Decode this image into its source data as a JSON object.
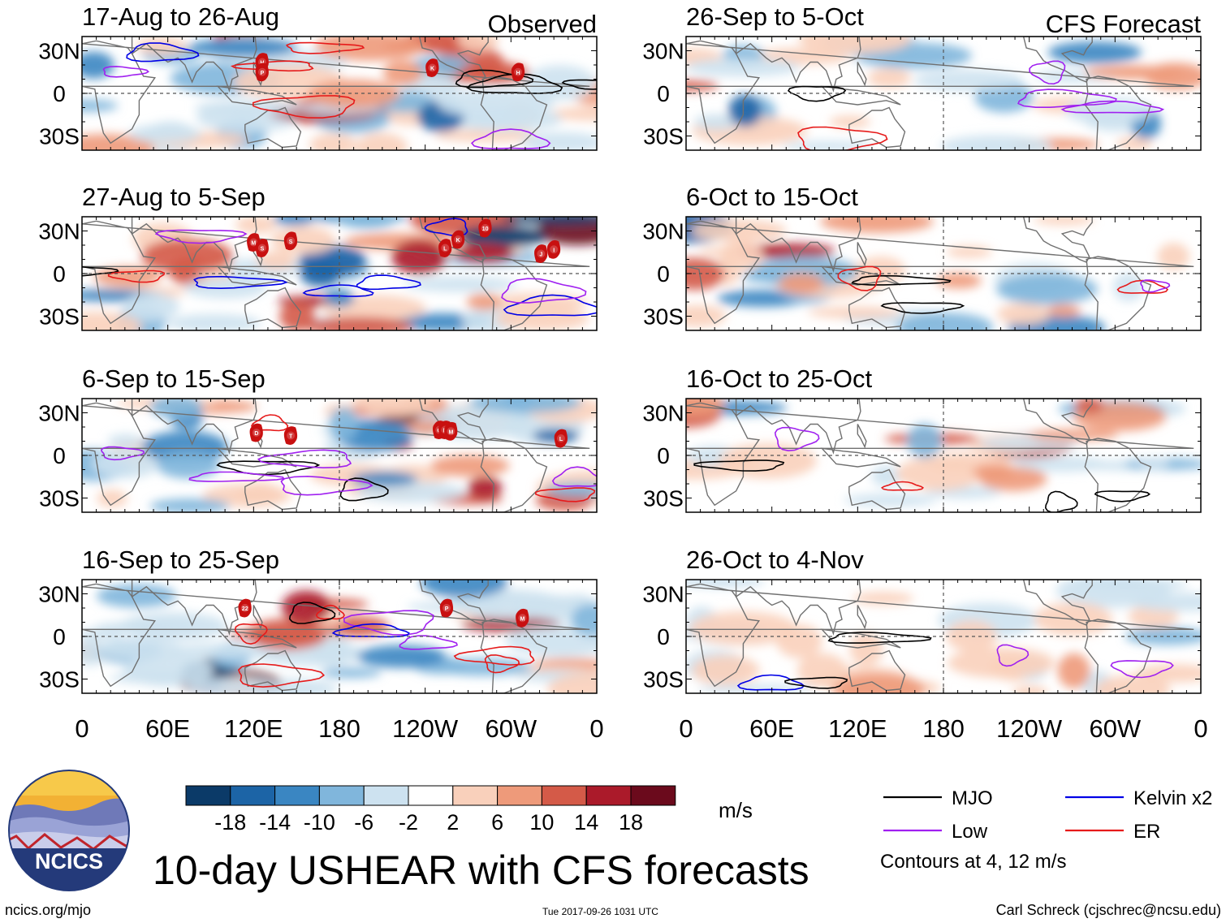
{
  "figure": {
    "title": "10-day USHEAR with CFS forecasts",
    "source_url": "ncics.org/mjo",
    "timestamp": "Tue 2017-09-26 1031 UTC",
    "author": "Carl Schreck (cjschrec@ncsu.edu)",
    "logo_text": "NCICS"
  },
  "chart_data": {
    "type": "heatmap",
    "variable": "USHEAR",
    "units": "m/s",
    "column_headers": {
      "left": "Observed",
      "right": "CFS Forecast"
    },
    "x_ticks": [
      "0",
      "60E",
      "120E",
      "180",
      "120W",
      "60W",
      "0"
    ],
    "y_ticks": [
      "30N",
      "0",
      "30S"
    ],
    "lon_range": [
      0,
      360
    ],
    "lat_range": [
      -40,
      40
    ],
    "colorbar": {
      "labels": [
        "-18",
        "-14",
        "-10",
        "-6",
        "-2",
        "2",
        "6",
        "10",
        "14",
        "18"
      ],
      "colors": [
        "#0b3a68",
        "#1c64a6",
        "#3a86c2",
        "#80b6dc",
        "#cde2f0",
        "#ffffff",
        "#f9d0bb",
        "#ee9a7a",
        "#d45a48",
        "#ab1a2a",
        "#6b0a1c"
      ]
    },
    "legend": {
      "items": [
        {
          "label": "MJO",
          "color": "#000000"
        },
        {
          "label": "Kelvin x2",
          "color": "#0000e6"
        },
        {
          "label": "Low",
          "color": "#a020f0"
        },
        {
          "label": "ER",
          "color": "#e61a1a"
        }
      ],
      "note": "Contours at 4, 12 m/s"
    },
    "panels": [
      {
        "period": "17-Aug to 26-Aug",
        "column": "Observed",
        "storms": [
          {
            "label": "H",
            "lon": 126,
            "lat": 22
          },
          {
            "label": "P",
            "lon": 126,
            "lat": 15
          },
          {
            "label": "K",
            "lon": 245,
            "lat": 18
          },
          {
            "label": "H",
            "lon": 305,
            "lat": 15
          }
        ]
      },
      {
        "period": "27-Aug to 5-Sep",
        "column": "Observed",
        "storms": [
          {
            "label": "M",
            "lon": 120,
            "lat": 22
          },
          {
            "label": "S",
            "lon": 126,
            "lat": 18
          },
          {
            "label": "S",
            "lon": 146,
            "lat": 23
          },
          {
            "label": "L",
            "lon": 254,
            "lat": 18
          },
          {
            "label": "K",
            "lon": 263,
            "lat": 24
          },
          {
            "label": "10",
            "lon": 282,
            "lat": 32
          },
          {
            "label": "J",
            "lon": 321,
            "lat": 14
          },
          {
            "label": "I",
            "lon": 330,
            "lat": 17
          }
        ]
      },
      {
        "period": "6-Sep to 15-Sep",
        "column": "Observed",
        "storms": [
          {
            "label": "D",
            "lon": 122,
            "lat": 16
          },
          {
            "label": "T",
            "lon": 146,
            "lat": 14
          },
          {
            "label": "O",
            "lon": 250,
            "lat": 18
          },
          {
            "label": "N",
            "lon": 254,
            "lat": 18
          },
          {
            "label": "M",
            "lon": 258,
            "lat": 17
          },
          {
            "label": "L",
            "lon": 335,
            "lat": 12
          }
        ]
      },
      {
        "period": "16-Sep to 25-Sep",
        "column": "Observed",
        "storms": [
          {
            "label": "22",
            "lon": 114,
            "lat": 20
          },
          {
            "label": "P",
            "lon": 255,
            "lat": 20
          },
          {
            "label": "M",
            "lon": 308,
            "lat": 13
          }
        ]
      },
      {
        "period": "26-Sep to 5-Oct",
        "column": "CFS Forecast",
        "storms": []
      },
      {
        "period": "6-Oct to 15-Oct",
        "column": "CFS Forecast",
        "storms": []
      },
      {
        "period": "16-Oct to 25-Oct",
        "column": "CFS Forecast",
        "storms": []
      },
      {
        "period": "26-Oct to 4-Nov",
        "column": "CFS Forecast",
        "storms": []
      }
    ]
  }
}
